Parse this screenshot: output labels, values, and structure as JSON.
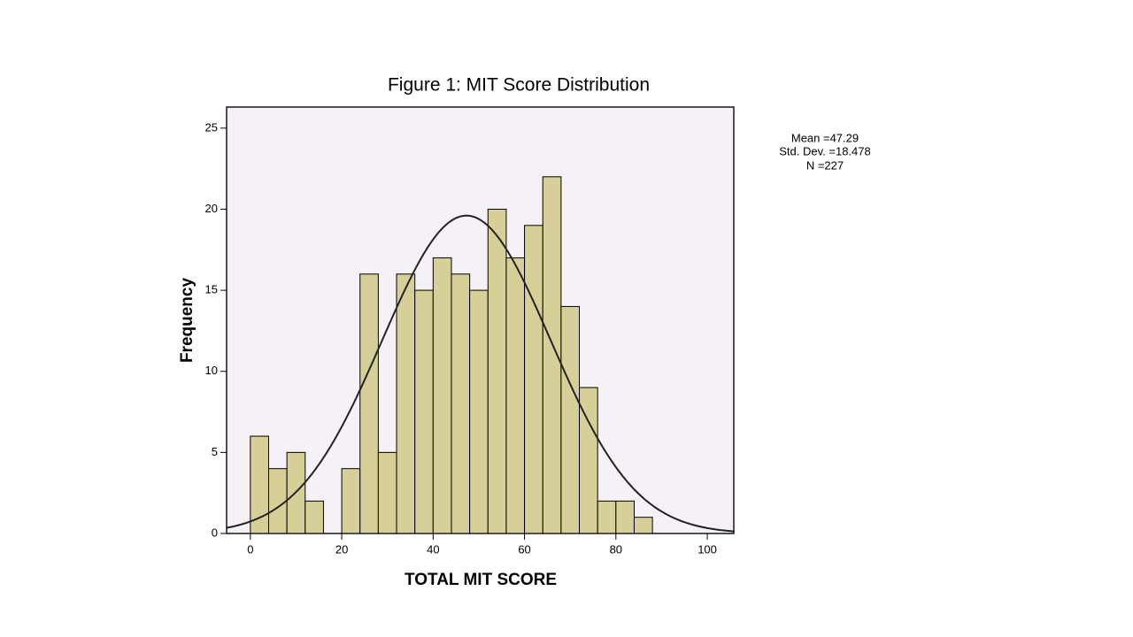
{
  "chart_data": {
    "type": "histogram",
    "title": "Figure 1:  MIT Score Distribution",
    "xlabel": "TOTAL MIT SCORE",
    "ylabel": "Frequency",
    "bins": [
      0,
      4,
      8,
      12,
      16,
      20,
      24,
      28,
      32,
      36,
      40,
      44,
      48,
      52,
      56,
      60,
      64,
      68,
      72,
      76,
      80,
      84,
      88
    ],
    "values": [
      6,
      4,
      5,
      2,
      0,
      4,
      16,
      5,
      16,
      15,
      17,
      16,
      15,
      20,
      17,
      19,
      22,
      14,
      9,
      2,
      2,
      1
    ],
    "color": "#d6cf98",
    "xlim": [
      -5.2,
      105.8
    ],
    "ylim": [
      0,
      26.3
    ],
    "xticks": [
      0,
      20,
      40,
      60,
      80,
      100
    ],
    "yticks": [
      0,
      5,
      10,
      15,
      20,
      25
    ],
    "stats": {
      "mean": {
        "value": 47.29,
        "label": "Mean =47.29"
      },
      "sd": {
        "value": 18.478,
        "label": "Std. Dev. =18.478"
      },
      "n": {
        "value": 227,
        "label": "N =227"
      }
    }
  }
}
